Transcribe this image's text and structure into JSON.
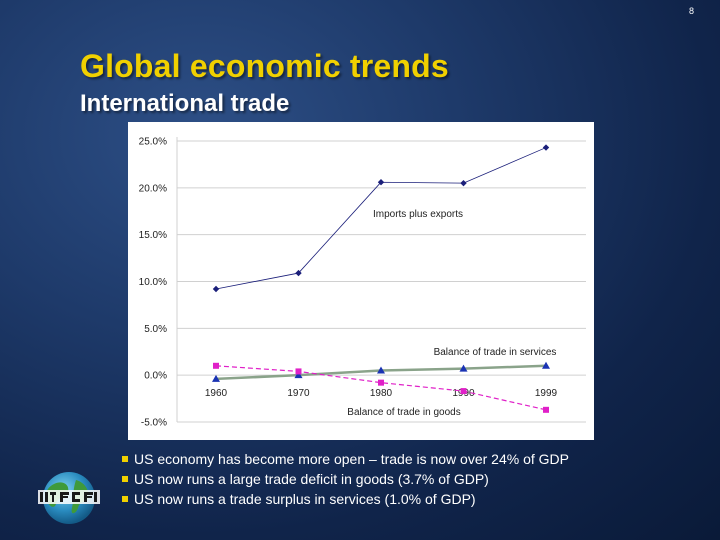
{
  "page_number": "8",
  "title": "Global economic trends",
  "subtitle": "International trade",
  "bullets": [
    "US economy has become more open – trade is now over 24% of GDP",
    "US now runs a large trade deficit in goods (3.7% of GDP)",
    "US now runs a trade surplus in services (1.0% of GDP)"
  ],
  "logo": {
    "icon": "globe-logo-icon"
  },
  "chart_data": {
    "type": "line",
    "x": [
      "1960",
      "1970",
      "1980",
      "1990",
      "1999"
    ],
    "yticks": [
      "25.0%",
      "20.0%",
      "15.0%",
      "10.0%",
      "5.0%",
      "0.0%",
      "-5.0%"
    ],
    "ylim": [
      -5,
      25
    ],
    "grid": true,
    "series": [
      {
        "name": "Imports plus exports",
        "values": [
          9.2,
          10.9,
          20.6,
          20.5,
          24.3
        ],
        "color": "#1b1f7a",
        "marker": "diamond"
      },
      {
        "name": "Balance of trade in services",
        "values": [
          -0.4,
          0.0,
          0.5,
          0.7,
          1.0
        ],
        "color": "#1a33b3",
        "marker": "triangle"
      },
      {
        "name": "Balance of trade in goods",
        "values": [
          1.0,
          0.4,
          -0.8,
          -1.7,
          -3.7
        ],
        "color": "#e020c8",
        "marker": "square"
      }
    ],
    "services_line_color": "#8aa38a"
  }
}
